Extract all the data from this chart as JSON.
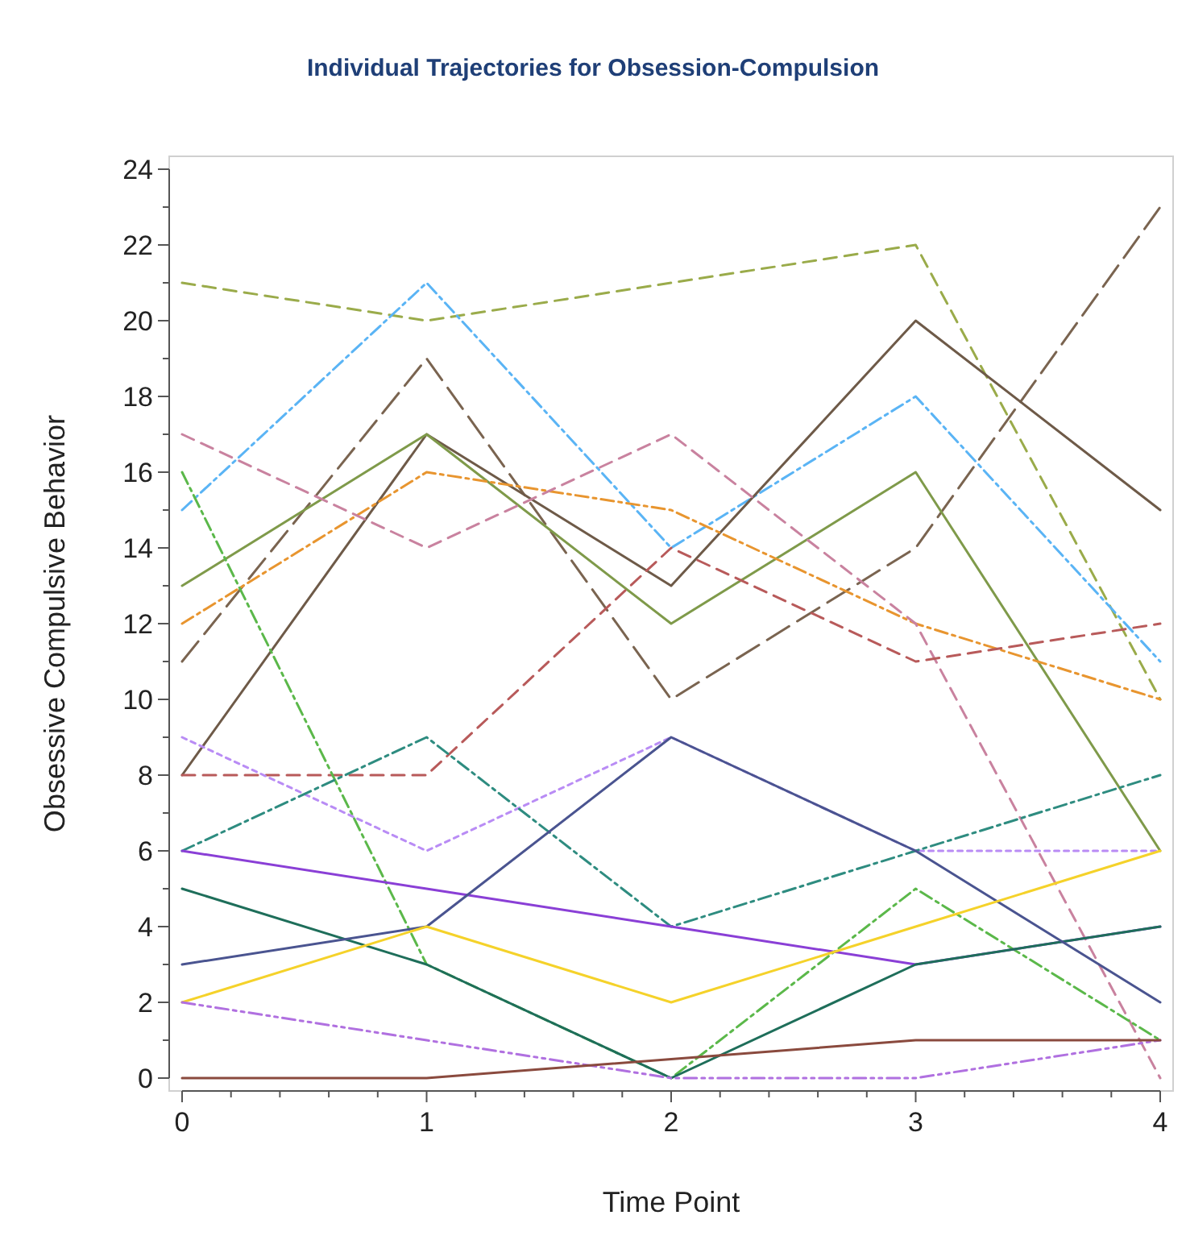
{
  "chart_data": {
    "type": "line",
    "title": "Individual Trajectories for Obsession-Compulsion",
    "xlabel": "Time Point",
    "ylabel": "Obsessive Compulsive Behavior",
    "x": [
      0,
      1,
      2,
      3,
      4
    ],
    "xlim": [
      0,
      4
    ],
    "ylim": [
      0,
      24
    ],
    "xticks": [
      0,
      {
        "value": 0.2,
        "label": null
      },
      {
        "value": 0.4,
        "label": null
      },
      {
        "value": 0.6,
        "label": null
      },
      {
        "value": 0.8,
        "label": null
      },
      1,
      {
        "value": 1.2,
        "label": null
      },
      {
        "value": 1.4,
        "label": null
      },
      {
        "value": 1.6,
        "label": null
      },
      {
        "value": 1.8,
        "label": null
      },
      2,
      {
        "value": 2.2,
        "label": null
      },
      {
        "value": 2.4,
        "label": null
      },
      {
        "value": 2.6,
        "label": null
      },
      {
        "value": 2.8,
        "label": null
      },
      3,
      {
        "value": 3.2,
        "label": null
      },
      {
        "value": 3.4,
        "label": null
      },
      {
        "value": 3.6,
        "label": null
      },
      {
        "value": 3.8,
        "label": null
      },
      4
    ],
    "yticks": [
      0,
      {
        "value": 1,
        "label": null
      },
      2,
      {
        "value": 3,
        "label": null
      },
      4,
      {
        "value": 5,
        "label": null
      },
      6,
      {
        "value": 7,
        "label": null
      },
      8,
      {
        "value": 9,
        "label": null
      },
      10,
      {
        "value": 11,
        "label": null
      },
      12,
      {
        "value": 13,
        "label": null
      },
      14,
      {
        "value": 15,
        "label": null
      },
      16,
      {
        "value": 17,
        "label": null
      },
      18,
      {
        "value": 19,
        "label": null
      },
      20,
      {
        "value": 21,
        "label": null
      },
      22,
      {
        "value": 23,
        "label": null
      },
      24
    ],
    "grid": false,
    "marker": "none",
    "series": [
      {
        "color": "#9aab4a",
        "line_style": "dashed",
        "values": [
          21,
          20,
          21,
          22,
          10
        ]
      },
      {
        "color": "#5ab4f5",
        "line_style": "dashdot",
        "values": [
          15,
          21,
          14,
          18,
          11
        ]
      },
      {
        "color": "#7a6450",
        "line_style": "longdash",
        "values": [
          11,
          19,
          10,
          14,
          23
        ]
      },
      {
        "color": "#6e5a48",
        "line_style": "solid",
        "values": [
          8,
          17,
          13,
          20,
          15
        ]
      },
      {
        "color": "#7f9a4a",
        "line_style": "solid",
        "values": [
          13,
          17,
          12,
          16,
          6
        ]
      },
      {
        "color": "#e8952f",
        "line_style": "dashdot",
        "values": [
          12,
          16,
          15,
          12,
          10
        ]
      },
      {
        "color": "#c9829f",
        "line_style": "dashed",
        "values": [
          17,
          14,
          17,
          12,
          0
        ]
      },
      {
        "color": "#b85a5a",
        "line_style": "dashed",
        "values": [
          8,
          8,
          14,
          11,
          12
        ]
      },
      {
        "color": "#5bb84a",
        "line_style": "dashdot",
        "values": [
          16,
          3,
          0,
          5,
          1
        ]
      },
      {
        "color": "#b98cf5",
        "line_style": "dotted",
        "values": [
          9,
          6,
          9,
          6,
          6
        ]
      },
      {
        "color": "#2e8c80",
        "line_style": "dashdot",
        "values": [
          6,
          9,
          4,
          6,
          8
        ]
      },
      {
        "color": "#8a3fd6",
        "line_style": "solid",
        "values": [
          6,
          5,
          4,
          3,
          4
        ]
      },
      {
        "color": "#1e6e5a",
        "line_style": "solid",
        "values": [
          5,
          3,
          0,
          3,
          4
        ]
      },
      {
        "color": "#4a5490",
        "line_style": "solid",
        "values": [
          3,
          4,
          9,
          6,
          2
        ]
      },
      {
        "color": "#f5d22a",
        "line_style": "solid",
        "values": [
          2,
          4,
          2,
          4,
          6
        ]
      },
      {
        "color": "#b070e0",
        "line_style": "dashdotdot",
        "values": [
          2,
          1,
          0,
          0,
          1
        ]
      },
      {
        "color": "#8a4a3e",
        "line_style": "solid",
        "values": [
          0,
          0,
          0.5,
          1,
          1
        ]
      }
    ]
  }
}
